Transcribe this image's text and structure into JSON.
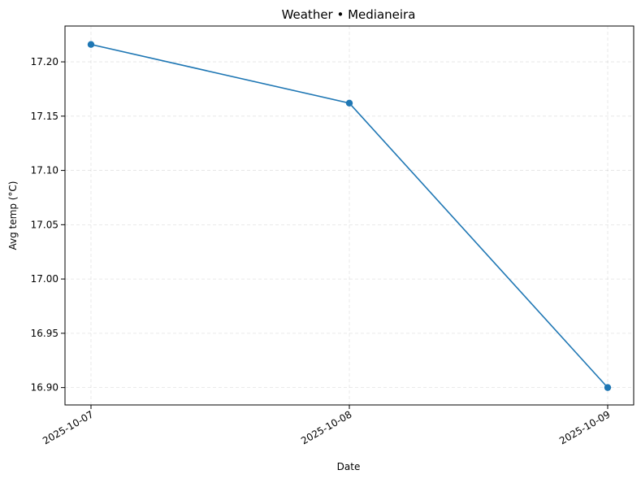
{
  "chart_data": {
    "type": "line",
    "title": "Weather • Medianeira",
    "xlabel": "Date",
    "ylabel": "Avg temp (°C)",
    "x": [
      "2025-10-07",
      "2025-10-08",
      "2025-10-09"
    ],
    "x_tick_labels": [
      "2025-10-07",
      "2025-10-08",
      "2025-10-09"
    ],
    "y_ticks": [
      16.9,
      16.95,
      17.0,
      17.05,
      17.1,
      17.15,
      17.2
    ],
    "y_tick_labels": [
      "16.90",
      "16.95",
      "17.00",
      "17.05",
      "17.10",
      "17.15",
      "17.20"
    ],
    "ylim": [
      16.884,
      17.233
    ],
    "series": [
      {
        "values": [
          17.216,
          17.162,
          16.9
        ],
        "color": "#1f77b4",
        "marker": "circle"
      }
    ],
    "grid": true,
    "legend": "none"
  }
}
